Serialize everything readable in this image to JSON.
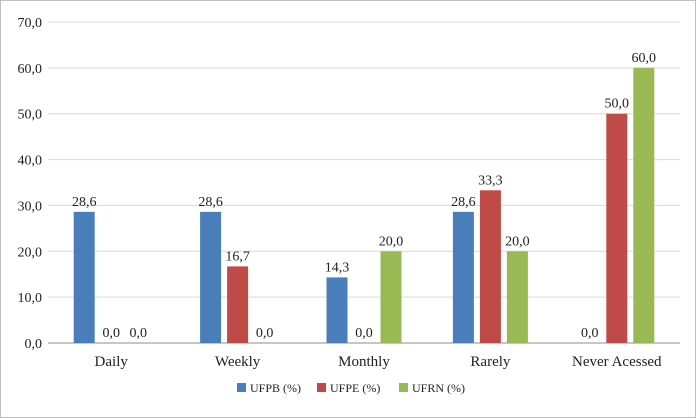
{
  "chart_data": {
    "type": "bar",
    "categories": [
      "Daily",
      "Weekly",
      "Monthly",
      "Rarely",
      "Never Acessed"
    ],
    "series": [
      {
        "name": "UFPB (%)",
        "values": [
          28.6,
          28.6,
          14.3,
          28.6,
          0.0
        ],
        "labels": [
          "28,6",
          "28,6",
          "14,3",
          "28,6",
          "0,0"
        ],
        "color": "#4a7ebb"
      },
      {
        "name": "UFPE (%)",
        "values": [
          0.0,
          16.7,
          0.0,
          33.3,
          50.0
        ],
        "labels": [
          "0,0",
          "16,7",
          "0,0",
          "33,3",
          "50,0"
        ],
        "color": "#be4b48"
      },
      {
        "name": "UFRN (%)",
        "values": [
          0.0,
          0.0,
          20.0,
          20.0,
          60.0
        ],
        "labels": [
          "0,0",
          "0,0",
          "20,0",
          "20,0",
          "60,0"
        ],
        "color": "#98b954"
      }
    ],
    "y_ticks": [
      "0,0",
      "10,0",
      "20,0",
      "30,0",
      "40,0",
      "50,0",
      "60,0",
      "70,0"
    ],
    "ylim": [
      0,
      70
    ],
    "grid": true,
    "legend_position": "bottom"
  }
}
